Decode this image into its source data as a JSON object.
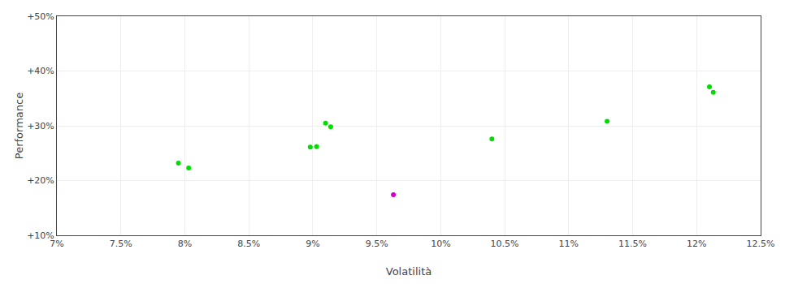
{
  "chart_data": {
    "type": "scatter",
    "xlabel": "Volatilità",
    "ylabel": "Performance",
    "xlim": [
      0.07,
      0.125
    ],
    "ylim": [
      0.1,
      0.5
    ],
    "xticks": [
      {
        "value": 0.07,
        "label": "7%"
      },
      {
        "value": 0.075,
        "label": "7.5%"
      },
      {
        "value": 0.08,
        "label": "8%"
      },
      {
        "value": 0.085,
        "label": "8.5%"
      },
      {
        "value": 0.09,
        "label": "9%"
      },
      {
        "value": 0.095,
        "label": "9.5%"
      },
      {
        "value": 0.1,
        "label": "10%"
      },
      {
        "value": 0.105,
        "label": "10.5%"
      },
      {
        "value": 0.11,
        "label": "11%"
      },
      {
        "value": 0.115,
        "label": "11.5%"
      },
      {
        "value": 0.12,
        "label": "12%"
      },
      {
        "value": 0.125,
        "label": "12.5%"
      }
    ],
    "yticks": [
      {
        "value": 0.1,
        "label": "+10%"
      },
      {
        "value": 0.2,
        "label": "+20%"
      },
      {
        "value": 0.3,
        "label": "+30%"
      },
      {
        "value": 0.4,
        "label": "+40%"
      },
      {
        "value": 0.5,
        "label": "+50%"
      }
    ],
    "grid": true,
    "series": [
      {
        "color": "#00dd00",
        "x": [
          0.0795,
          0.0803,
          0.0898,
          0.0903,
          0.091,
          0.0914,
          0.104,
          0.113,
          0.121,
          0.1213
        ],
        "values": [
          0.232,
          0.223,
          0.261,
          0.262,
          0.305,
          0.298,
          0.276,
          0.308,
          0.371,
          0.361
        ]
      },
      {
        "color": "#cc00cc",
        "x": [
          0.0963
        ],
        "values": [
          0.174
        ]
      }
    ]
  }
}
